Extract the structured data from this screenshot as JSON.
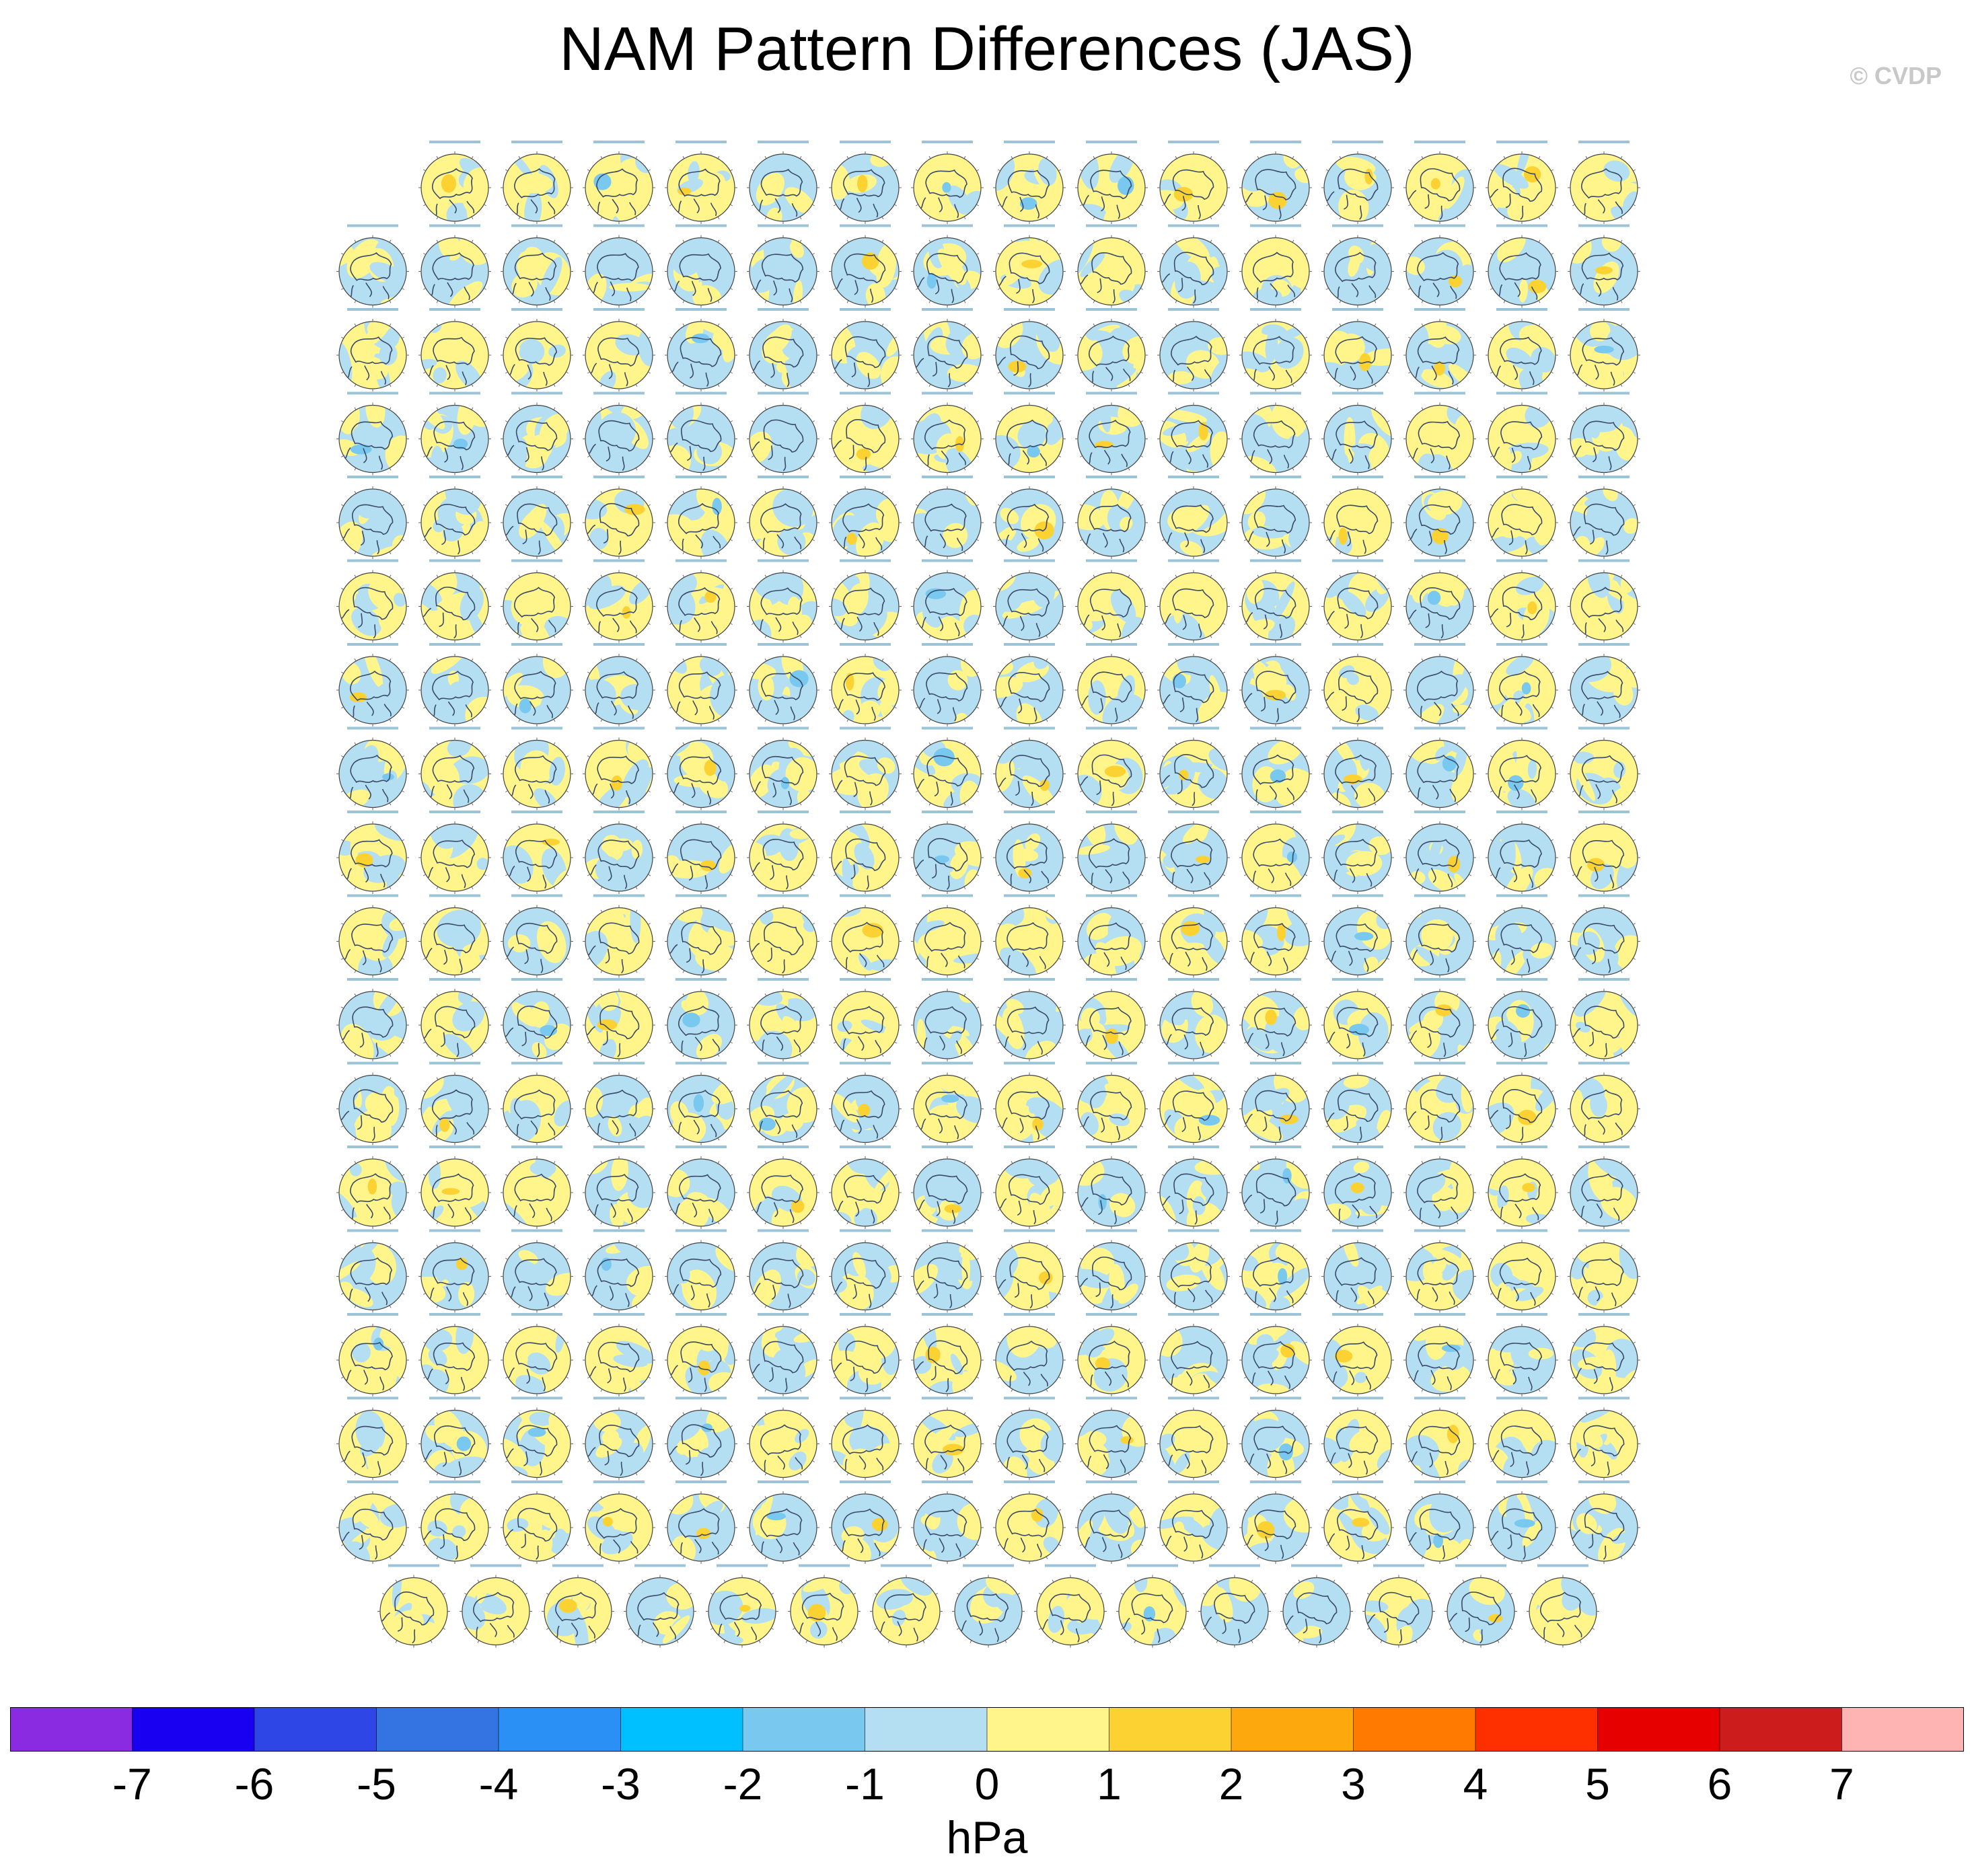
{
  "title": "NAM Pattern Differences (JAS)",
  "copyright": "© CVDP",
  "chart_data": {
    "type": "heatmap",
    "title": "NAM Pattern Differences (JAS)",
    "description_units": "hPa",
    "layout": {
      "rows": [
        15,
        16,
        16,
        16,
        16,
        16,
        16,
        16,
        16,
        16,
        16,
        16,
        16,
        16,
        16,
        16,
        16,
        15
      ],
      "total_panels": 286
    },
    "colorbar": {
      "units": "hPa",
      "levels": [
        -7,
        -6,
        -5,
        -4,
        -3,
        -2,
        -1,
        0,
        1,
        2,
        3,
        4,
        5,
        6,
        7
      ],
      "tick_labels": [
        "-7",
        "-6",
        "-5",
        "-4",
        "-3",
        "-2",
        "-1",
        "0",
        "1",
        "2",
        "3",
        "4",
        "5",
        "6",
        "7"
      ],
      "colors": [
        "#8a2be2",
        "#1a00f0",
        "#2e46e6",
        "#3474e2",
        "#2a90f5",
        "#00c0ff",
        "#78c8f0",
        "#b4dff2",
        "#fff58a",
        "#fbd231",
        "#fda80c",
        "#ff7a00",
        "#ff3000",
        "#e60000",
        "#cd1c1c",
        "#ffb4b4"
      ]
    },
    "panel_colors": {
      "negative": "#b4dff2",
      "positive": "#fff58a",
      "strong_positive": "#fbd231",
      "strong_negative": "#78c8f0",
      "coast": "#3a4a6a"
    }
  }
}
